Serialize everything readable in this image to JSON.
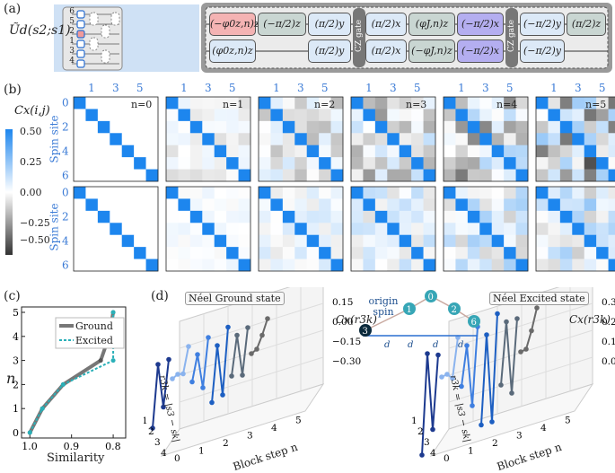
{
  "panel_a": {
    "label": "(a)",
    "unitary": "Ũd(s2;s1)",
    "qubit_labels": [
      "6",
      "5",
      "2",
      "1",
      "3",
      "4"
    ],
    "row1_gates": [
      "(−φ0z,n)z",
      "(−π/2)z",
      "(π/2)y",
      "(π/2)x",
      "(φJ,n)z",
      "(−π/2)x",
      "(−π/2)y",
      "(π/2)z"
    ],
    "row2_gates": [
      "(φ0z,n)z",
      "(π/2)y",
      "(π/2)x",
      "(−φJ,n)z",
      "(−π/2)x",
      "(−π/2)y"
    ],
    "cz_label": "CZ gate"
  },
  "panel_b": {
    "label": "(b)",
    "colorbar_title": "Cx(i,j)",
    "colorbar_ticks": [
      "0.50",
      "0.25",
      "0.00",
      "−0.25",
      "−0.50"
    ],
    "ylabel": "Spin site",
    "col_ticks": [
      "1",
      "3",
      "5"
    ],
    "row_ticks": [
      "0",
      "2",
      "4",
      "6"
    ],
    "steps": [
      "n=0",
      "n=1",
      "n=2",
      "n=3",
      "n=4",
      "n=5"
    ]
  },
  "panel_c": {
    "label": "(c)",
    "xlabel": "Similarity",
    "ylabel": "n",
    "legend": [
      "Ground",
      "Excited"
    ],
    "chart_data": {
      "type": "line",
      "title": "",
      "xlabel": "Similarity",
      "ylabel": "n",
      "xlim": [
        1.02,
        0.77
      ],
      "ylim": [
        0,
        5
      ],
      "x_ticks": [
        "1.0",
        "0.9",
        "0.8"
      ],
      "y_ticks": [
        "0",
        "1",
        "2",
        "3",
        "4",
        "5"
      ],
      "series": [
        {
          "name": "Ground",
          "color": "#777777",
          "x": [
            1.0,
            0.97,
            0.92,
            0.83,
            0.81,
            0.8
          ],
          "y": [
            0,
            1,
            2,
            3,
            4,
            5
          ]
        },
        {
          "name": "Excited",
          "color": "#2ab0b8",
          "x": [
            1.0,
            0.97,
            0.92,
            0.8,
            0.8,
            0.8
          ],
          "y": [
            0,
            1,
            2,
            3,
            4,
            5
          ]
        }
      ]
    }
  },
  "panel_d": {
    "label": "(d)",
    "left_title": "Néel Ground state",
    "right_title": "Néel Excited state",
    "zlabel": "Cx(r3k)",
    "xlabel": "Block step n",
    "ylabel": "r3k = |s3 − sk|",
    "left_z_ticks": [
      "0.15",
      "0.00",
      "−0.15",
      "−0.30"
    ],
    "right_z_ticks": [
      "0.3",
      "0.2",
      "0.1",
      "0.0"
    ],
    "x_ticks": [
      "0",
      "1",
      "2",
      "3",
      "4",
      "5"
    ],
    "y_ticks": [
      "1",
      "2",
      "3",
      "4"
    ],
    "inset": {
      "origin_label": "origin spin",
      "nodes": [
        "3",
        "1",
        "0",
        "2",
        "6"
      ],
      "d_label": "d"
    }
  }
}
